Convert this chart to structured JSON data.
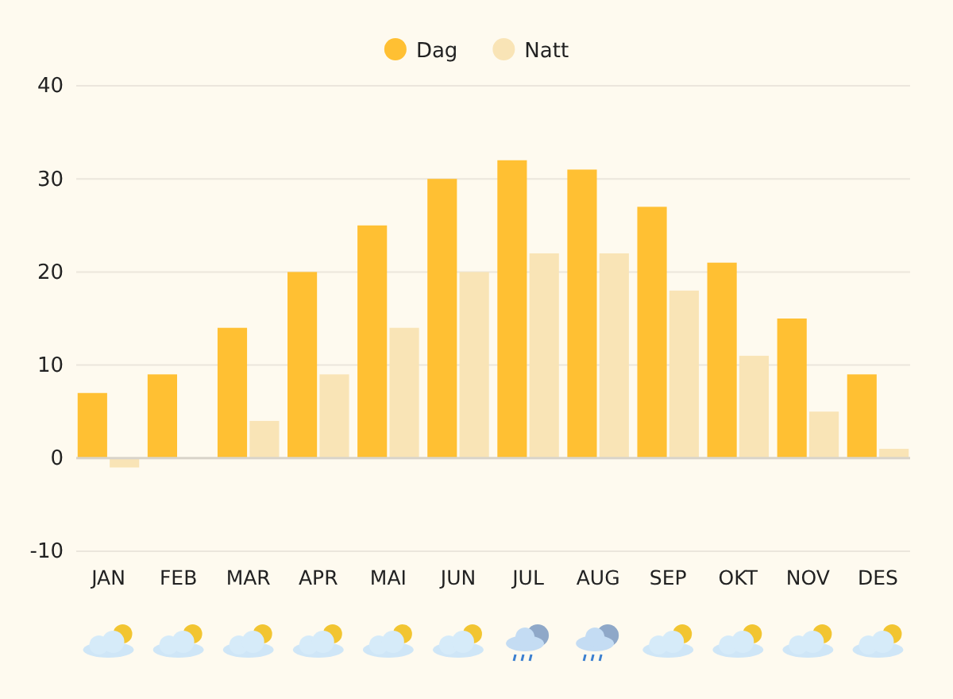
{
  "chart_data": {
    "type": "bar",
    "categories": [
      "JAN",
      "FEB",
      "MAR",
      "APR",
      "MAI",
      "JUN",
      "JUL",
      "AUG",
      "SEP",
      "OKT",
      "NOV",
      "DES"
    ],
    "series": [
      {
        "name": "Dag",
        "color": "#ffc033",
        "values": [
          7,
          9,
          14,
          20,
          25,
          30,
          32,
          31,
          27,
          21,
          15,
          9
        ]
      },
      {
        "name": "Natt",
        "color": "#f9e4b6",
        "values": [
          -1,
          0,
          4,
          9,
          14,
          20,
          22,
          22,
          18,
          11,
          5,
          1
        ]
      }
    ],
    "ylim": [
      -10,
      40
    ],
    "yticks": [
      -10,
      0,
      10,
      20,
      30,
      40
    ],
    "grid": "y",
    "legend": "top"
  }
}
